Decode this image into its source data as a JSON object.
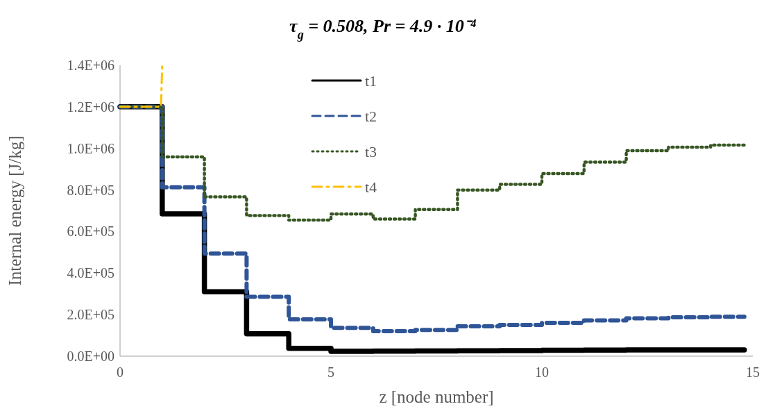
{
  "chart_data": {
    "type": "step",
    "title": "τ$_{g}$ = 0.508, Pr = 4.9 · 10⁻⁴",
    "xlabel": "z [node number]",
    "ylabel": "Internal energy [J/kg]",
    "xlim": [
      0,
      15
    ],
    "xticks": [
      0,
      5,
      10,
      15
    ],
    "ylim": [
      0,
      1400000
    ],
    "yticks": [
      {
        "value": 0,
        "label": "0.0E+00"
      },
      {
        "value": 200000,
        "label": "2.0E+05"
      },
      {
        "value": 400000,
        "label": "4.0E+05"
      },
      {
        "value": 600000,
        "label": "6.0E+05"
      },
      {
        "value": 800000,
        "label": "8.0E+05"
      },
      {
        "value": 1000000,
        "label": "1.0E+06"
      },
      {
        "value": 1200000,
        "label": "1.2E+06"
      },
      {
        "value": 1400000,
        "label": "1.4E+06"
      }
    ],
    "x": [
      0,
      1,
      2,
      3,
      4,
      5,
      6,
      7,
      8,
      9,
      10,
      11,
      12,
      13,
      14,
      14.8
    ],
    "legend": "top",
    "grid": false,
    "marker": "none",
    "series": [
      {
        "name": "t1",
        "color": "#000000",
        "line_style": "solid",
        "values": [
          1200000,
          685000,
          310000,
          108000,
          38000,
          23000,
          24000,
          25000,
          26000,
          27000,
          28000,
          29000,
          30000,
          30000,
          30000,
          30000
        ]
      },
      {
        "name": "t2",
        "color": "#2f5597",
        "line_style": "dashed",
        "values": [
          1200000,
          813000,
          494000,
          286000,
          177000,
          136000,
          120000,
          126000,
          144000,
          150000,
          160000,
          172000,
          182000,
          187000,
          190000,
          190000
        ]
      },
      {
        "name": "t3",
        "color": "#375623",
        "line_style": "dotted",
        "values": [
          1200000,
          959000,
          767000,
          677000,
          655000,
          684000,
          660000,
          706000,
          799000,
          827000,
          879000,
          934000,
          989000,
          1006000,
          1016000,
          1016000
        ]
      },
      {
        "name": "t4",
        "type": "line",
        "color": "#ffc000",
        "line_style": "dashdot",
        "x": [
          0,
          0.97,
          1
        ],
        "values": [
          1200000,
          1200000,
          1400000
        ]
      }
    ]
  }
}
